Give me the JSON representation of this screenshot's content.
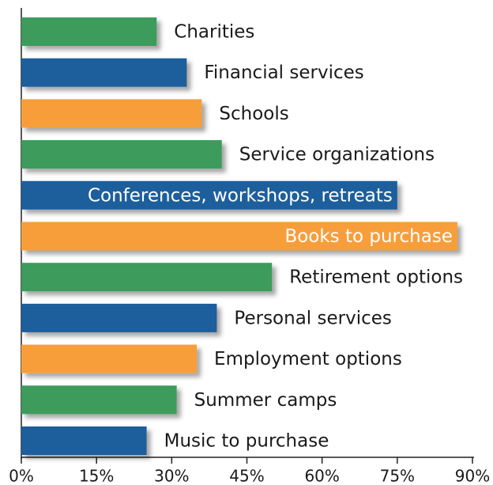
{
  "chart_data": {
    "type": "bar",
    "orientation": "horizontal",
    "categories": [
      "Charities",
      "Financial services",
      "Schools",
      "Service organizations",
      "Conferences, workshops, retreats",
      "Books to purchase",
      "Retirement options",
      "Personal services",
      "Employment  options",
      "Summer camps",
      "Music to purchase"
    ],
    "values": [
      27,
      33,
      36,
      40,
      75,
      87,
      50,
      39,
      35,
      31,
      25
    ],
    "colors": [
      "#3d9b5c",
      "#1c5e9c",
      "#f79e3b",
      "#3d9b5c",
      "#1c5e9c",
      "#f79e3b",
      "#3d9b5c",
      "#1c5e9c",
      "#f79e3b",
      "#3d9b5c",
      "#1c5e9c"
    ],
    "xlim": [
      0,
      90
    ],
    "xticks": [
      {
        "value": 0,
        "label": "0%"
      },
      {
        "value": 15,
        "label": "15%"
      },
      {
        "value": 30,
        "label": "30%"
      },
      {
        "value": 45,
        "label": "45%"
      },
      {
        "value": 60,
        "label": "60%"
      },
      {
        "value": 75,
        "label": "75%"
      },
      {
        "value": 90,
        "label": "90%"
      }
    ],
    "grid": false
  }
}
